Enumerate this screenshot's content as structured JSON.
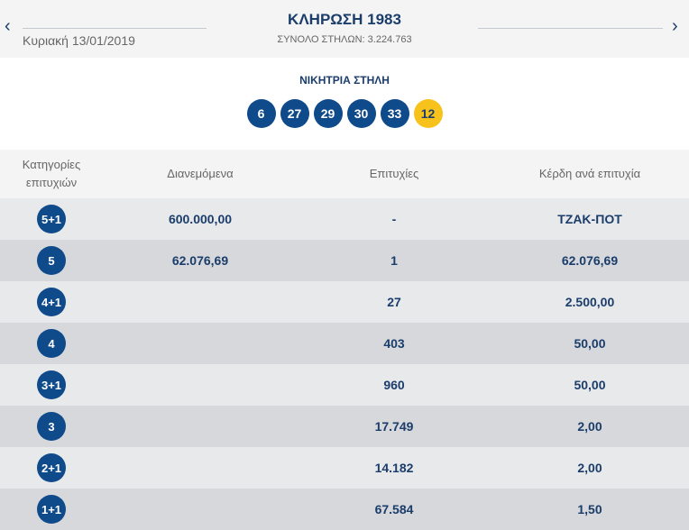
{
  "header": {
    "title": "ΚΛΗΡΩΣΗ 1983",
    "date": "Κυριακή 13/01/2019",
    "total": "ΣΥΝΟΛΟ ΣΤΗΛΩΝ: 3.224.763",
    "prev": "‹",
    "next": "›"
  },
  "winning": {
    "label": "ΝΙΚΗΤΡΙΑ ΣΤΗΛΗ",
    "numbers": [
      "6",
      "27",
      "29",
      "30",
      "33"
    ],
    "bonus": "12"
  },
  "table": {
    "headers": [
      "Κατηγορίες επιτυχιών",
      "Διανεμόμενα",
      "Επιτυχίες",
      "Κέρδη ανά επιτυχία"
    ],
    "rows": [
      {
        "category": "5+1",
        "distributed": "600.000,00",
        "hits": "-",
        "prize": "ΤΖΑΚ-ΠΟΤ"
      },
      {
        "category": "5",
        "distributed": "62.076,69",
        "hits": "1",
        "prize": "62.076,69"
      },
      {
        "category": "4+1",
        "distributed": "",
        "hits": "27",
        "prize": "2.500,00"
      },
      {
        "category": "4",
        "distributed": "",
        "hits": "403",
        "prize": "50,00"
      },
      {
        "category": "3+1",
        "distributed": "",
        "hits": "960",
        "prize": "50,00"
      },
      {
        "category": "3",
        "distributed": "",
        "hits": "17.749",
        "prize": "2,00"
      },
      {
        "category": "2+1",
        "distributed": "",
        "hits": "14.182",
        "prize": "2,00"
      },
      {
        "category": "1+1",
        "distributed": "",
        "hits": "67.584",
        "prize": "1,50"
      }
    ]
  },
  "colors": {
    "ball": "#0f4a8a",
    "bonus": "#f7c21c",
    "text": "#1b3d6b"
  }
}
